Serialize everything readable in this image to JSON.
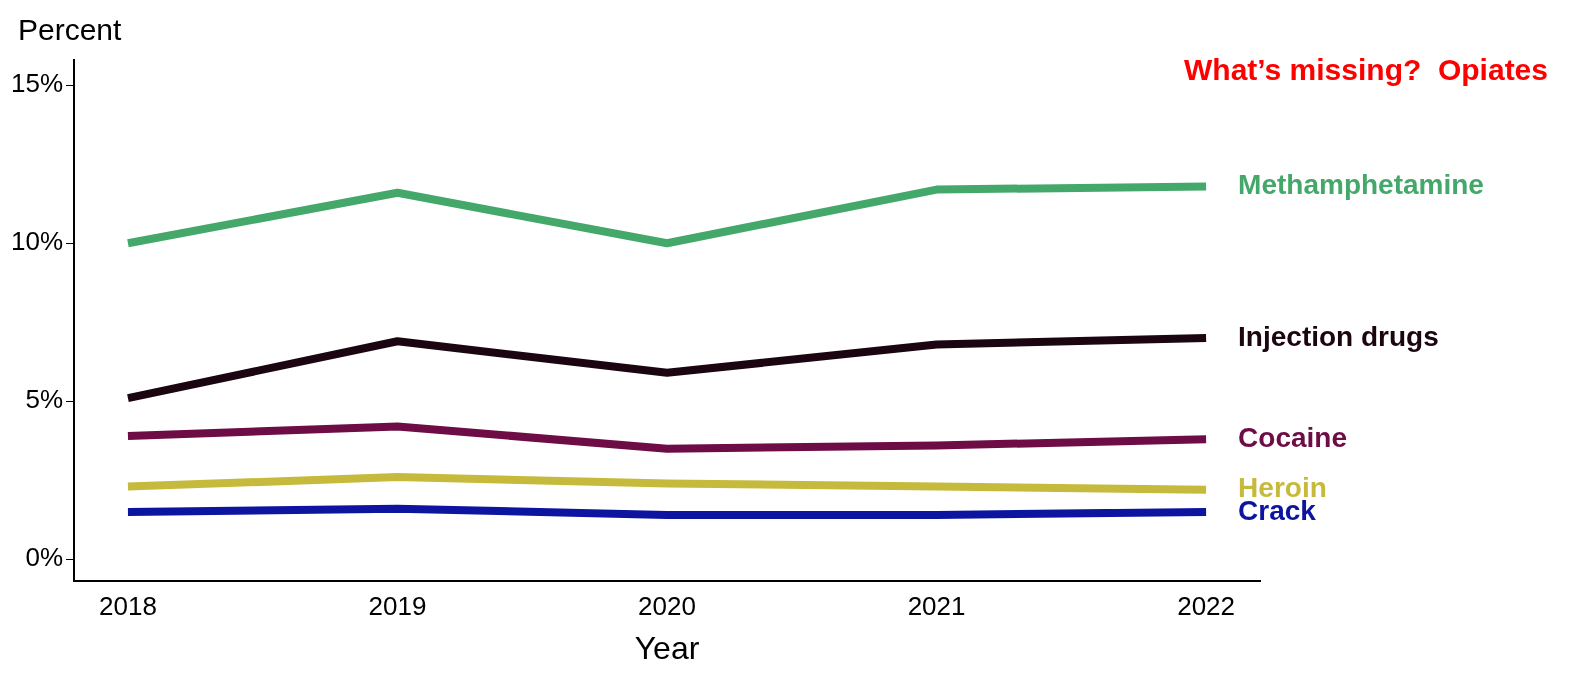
{
  "chart_data": {
    "type": "line",
    "ylabel": "Percent",
    "xlabel": "Year",
    "x": [
      2018,
      2019,
      2020,
      2021,
      2022
    ],
    "xlim": [
      2017.8,
      2022.2
    ],
    "xticks": [
      2018,
      2019,
      2020,
      2021,
      2022
    ],
    "ylim": [
      -0.7,
      15.8
    ],
    "yticks": [
      {
        "value": 0,
        "label": "0%"
      },
      {
        "value": 5,
        "label": "5%"
      },
      {
        "value": 10,
        "label": "10%"
      },
      {
        "value": 15,
        "label": "15%"
      }
    ],
    "grid": false,
    "legend": false,
    "marker": "none",
    "line_style": "solid",
    "annotations": [
      "What’s missing?  Opiates"
    ],
    "series": [
      {
        "name": "Methamphetamine",
        "color": "#44a86a",
        "values": [
          10.0,
          11.6,
          10.0,
          11.7,
          11.8
        ]
      },
      {
        "name": "Injection drugs",
        "color": "#1a0510",
        "values": [
          5.1,
          6.9,
          5.9,
          6.8,
          7.0
        ]
      },
      {
        "name": "Cocaine",
        "color": "#6e0c46",
        "values": [
          3.9,
          4.2,
          3.5,
          3.6,
          3.8
        ]
      },
      {
        "name": "Heroin",
        "color": "#c6ba3c",
        "values": [
          2.3,
          2.6,
          2.4,
          2.3,
          2.2
        ]
      },
      {
        "name": "Crack",
        "color": "#0c14a0",
        "values": [
          1.5,
          1.6,
          1.4,
          1.4,
          1.5
        ]
      }
    ]
  }
}
